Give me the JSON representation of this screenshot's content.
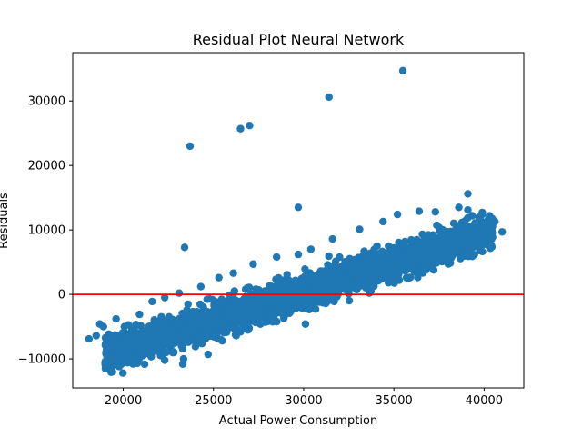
{
  "chart_data": {
    "type": "scatter",
    "title": "Residual Plot Neural Network",
    "xlabel": "Actual Power Consumption",
    "ylabel": "Residuals",
    "xlim": [
      17200,
      42200
    ],
    "ylim": [
      -14500,
      37500
    ],
    "x_ticks": [
      20000,
      25000,
      30000,
      35000,
      40000
    ],
    "y_ticks": [
      -10000,
      0,
      10000,
      20000,
      30000
    ],
    "grid": false,
    "legend": "none",
    "point_color": "#1f77b4",
    "reference_line": {
      "y": 0,
      "color": "#ff0000"
    },
    "trend_note": "dense band of points along residual ≈ 0.9 × actual − 26500, spread about ±2500",
    "series": [
      {
        "values": [
          {
            "x": 35500,
            "y": 34700
          },
          {
            "x": 31400,
            "y": 30600
          },
          {
            "x": 27000,
            "y": 26200
          },
          {
            "x": 26500,
            "y": 25700
          },
          {
            "x": 23700,
            "y": 23000
          },
          {
            "x": 39100,
            "y": 15600
          },
          {
            "x": 29700,
            "y": 13500
          },
          {
            "x": 23400,
            "y": 7300
          },
          {
            "x": 18100,
            "y": -6900
          },
          {
            "x": 19400,
            "y": -12000
          },
          {
            "x": 19000,
            "y": -10700
          },
          {
            "x": 23300,
            "y": -10800
          },
          {
            "x": 18500,
            "y": -6400
          },
          {
            "x": 18700,
            "y": -4600
          },
          {
            "x": 18900,
            "y": -5000
          },
          {
            "x": 19100,
            "y": -8600
          },
          {
            "x": 19600,
            "y": -3800
          },
          {
            "x": 20400,
            "y": -9700
          },
          {
            "x": 21100,
            "y": -9500
          },
          {
            "x": 22300,
            "y": -10200
          },
          {
            "x": 20900,
            "y": -3100
          },
          {
            "x": 21600,
            "y": -1100
          },
          {
            "x": 22300,
            "y": -500
          },
          {
            "x": 23100,
            "y": 200
          },
          {
            "x": 24300,
            "y": 1200
          },
          {
            "x": 25300,
            "y": 2600
          },
          {
            "x": 26100,
            "y": 3300
          },
          {
            "x": 27200,
            "y": 4700
          },
          {
            "x": 28500,
            "y": 5800
          },
          {
            "x": 29700,
            "y": 6200
          },
          {
            "x": 30400,
            "y": 7000
          },
          {
            "x": 31600,
            "y": 8600
          },
          {
            "x": 33100,
            "y": 10100
          },
          {
            "x": 34400,
            "y": 11300
          },
          {
            "x": 35200,
            "y": 12400
          },
          {
            "x": 36400,
            "y": 12900
          },
          {
            "x": 37300,
            "y": 12800
          },
          {
            "x": 38600,
            "y": 13500
          },
          {
            "x": 39100,
            "y": 13100
          },
          {
            "x": 39900,
            "y": 12700
          },
          {
            "x": 40600,
            "y": 11300
          },
          {
            "x": 41000,
            "y": 9700
          },
          {
            "x": 40100,
            "y": 8900
          },
          {
            "x": 38300,
            "y": 7300
          },
          {
            "x": 37400,
            "y": 6300
          },
          {
            "x": 36700,
            "y": 4100
          },
          {
            "x": 35700,
            "y": 2600
          },
          {
            "x": 35300,
            "y": 2200
          },
          {
            "x": 34700,
            "y": 1800
          },
          {
            "x": 34100,
            "y": 2900
          },
          {
            "x": 33300,
            "y": 1800
          },
          {
            "x": 32500,
            "y": 100
          },
          {
            "x": 31300,
            "y": -1100
          },
          {
            "x": 30300,
            "y": -2100
          },
          {
            "x": 30100,
            "y": -4600
          },
          {
            "x": 28900,
            "y": -3700
          },
          {
            "x": 27600,
            "y": -4600
          },
          {
            "x": 26500,
            "y": -5800
          },
          {
            "x": 25400,
            "y": -7000
          },
          {
            "x": 24700,
            "y": -9300
          },
          {
            "x": 24000,
            "y": -8100
          },
          {
            "x": 22800,
            "y": -9000
          },
          {
            "x": 21900,
            "y": -8100
          },
          {
            "x": 20600,
            "y": -8400
          }
        ]
      }
    ]
  }
}
